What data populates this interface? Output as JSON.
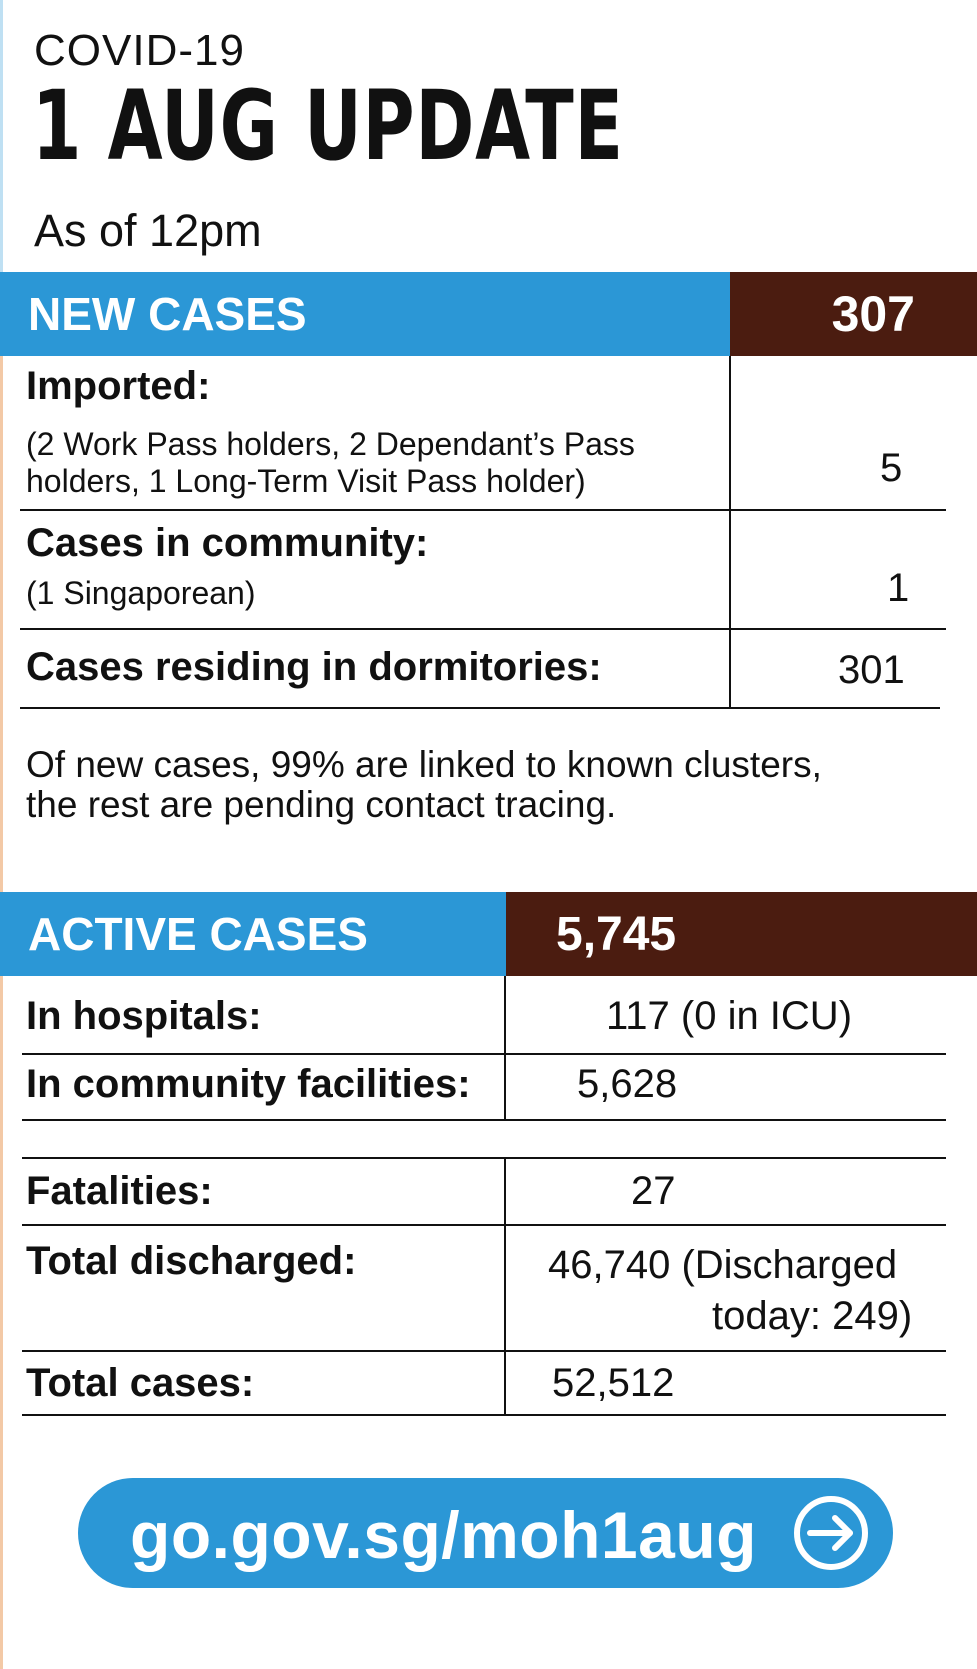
{
  "header": {
    "subtitle": "COVID-19",
    "title": "1 AUG UPDATE",
    "as_of": "As of 12pm"
  },
  "new_cases": {
    "label": "NEW CASES",
    "value": "307",
    "imported": {
      "label": "Imported:",
      "detail_line1": "(2 Work Pass holders, 2 Dependant’s Pass",
      "detail_line2": "holders, 1 Long-Term Visit Pass holder)",
      "value": "5"
    },
    "community": {
      "label": "Cases in community:",
      "detail": "(1 Singaporean)",
      "value": "1"
    },
    "dormitories": {
      "label": "Cases residing in dormitories:",
      "value": "301"
    },
    "note_line1": "Of new cases, 99% are linked to known clusters,",
    "note_line2": "the rest are pending contact tracing."
  },
  "active_cases": {
    "label": "ACTIVE CASES",
    "value": "5,745",
    "hospitals": {
      "label": "In hospitals:",
      "value": "117 (0 in ICU)"
    },
    "community_facilities": {
      "label": "In community facilities:",
      "value": "5,628"
    }
  },
  "totals": {
    "fatalities": {
      "label": "Fatalities:",
      "value": "27"
    },
    "discharged": {
      "label": "Total discharged:",
      "value_line1": "46,740 (Discharged",
      "value_line2": "today: 249)"
    },
    "total_cases": {
      "label": "Total cases:",
      "value": "52,512"
    }
  },
  "link": {
    "text": "go.gov.sg/moh1aug",
    "icon": "arrow-right-circle-icon"
  },
  "colors": {
    "blue": "#2b97d6",
    "brown": "#4b1c10"
  }
}
